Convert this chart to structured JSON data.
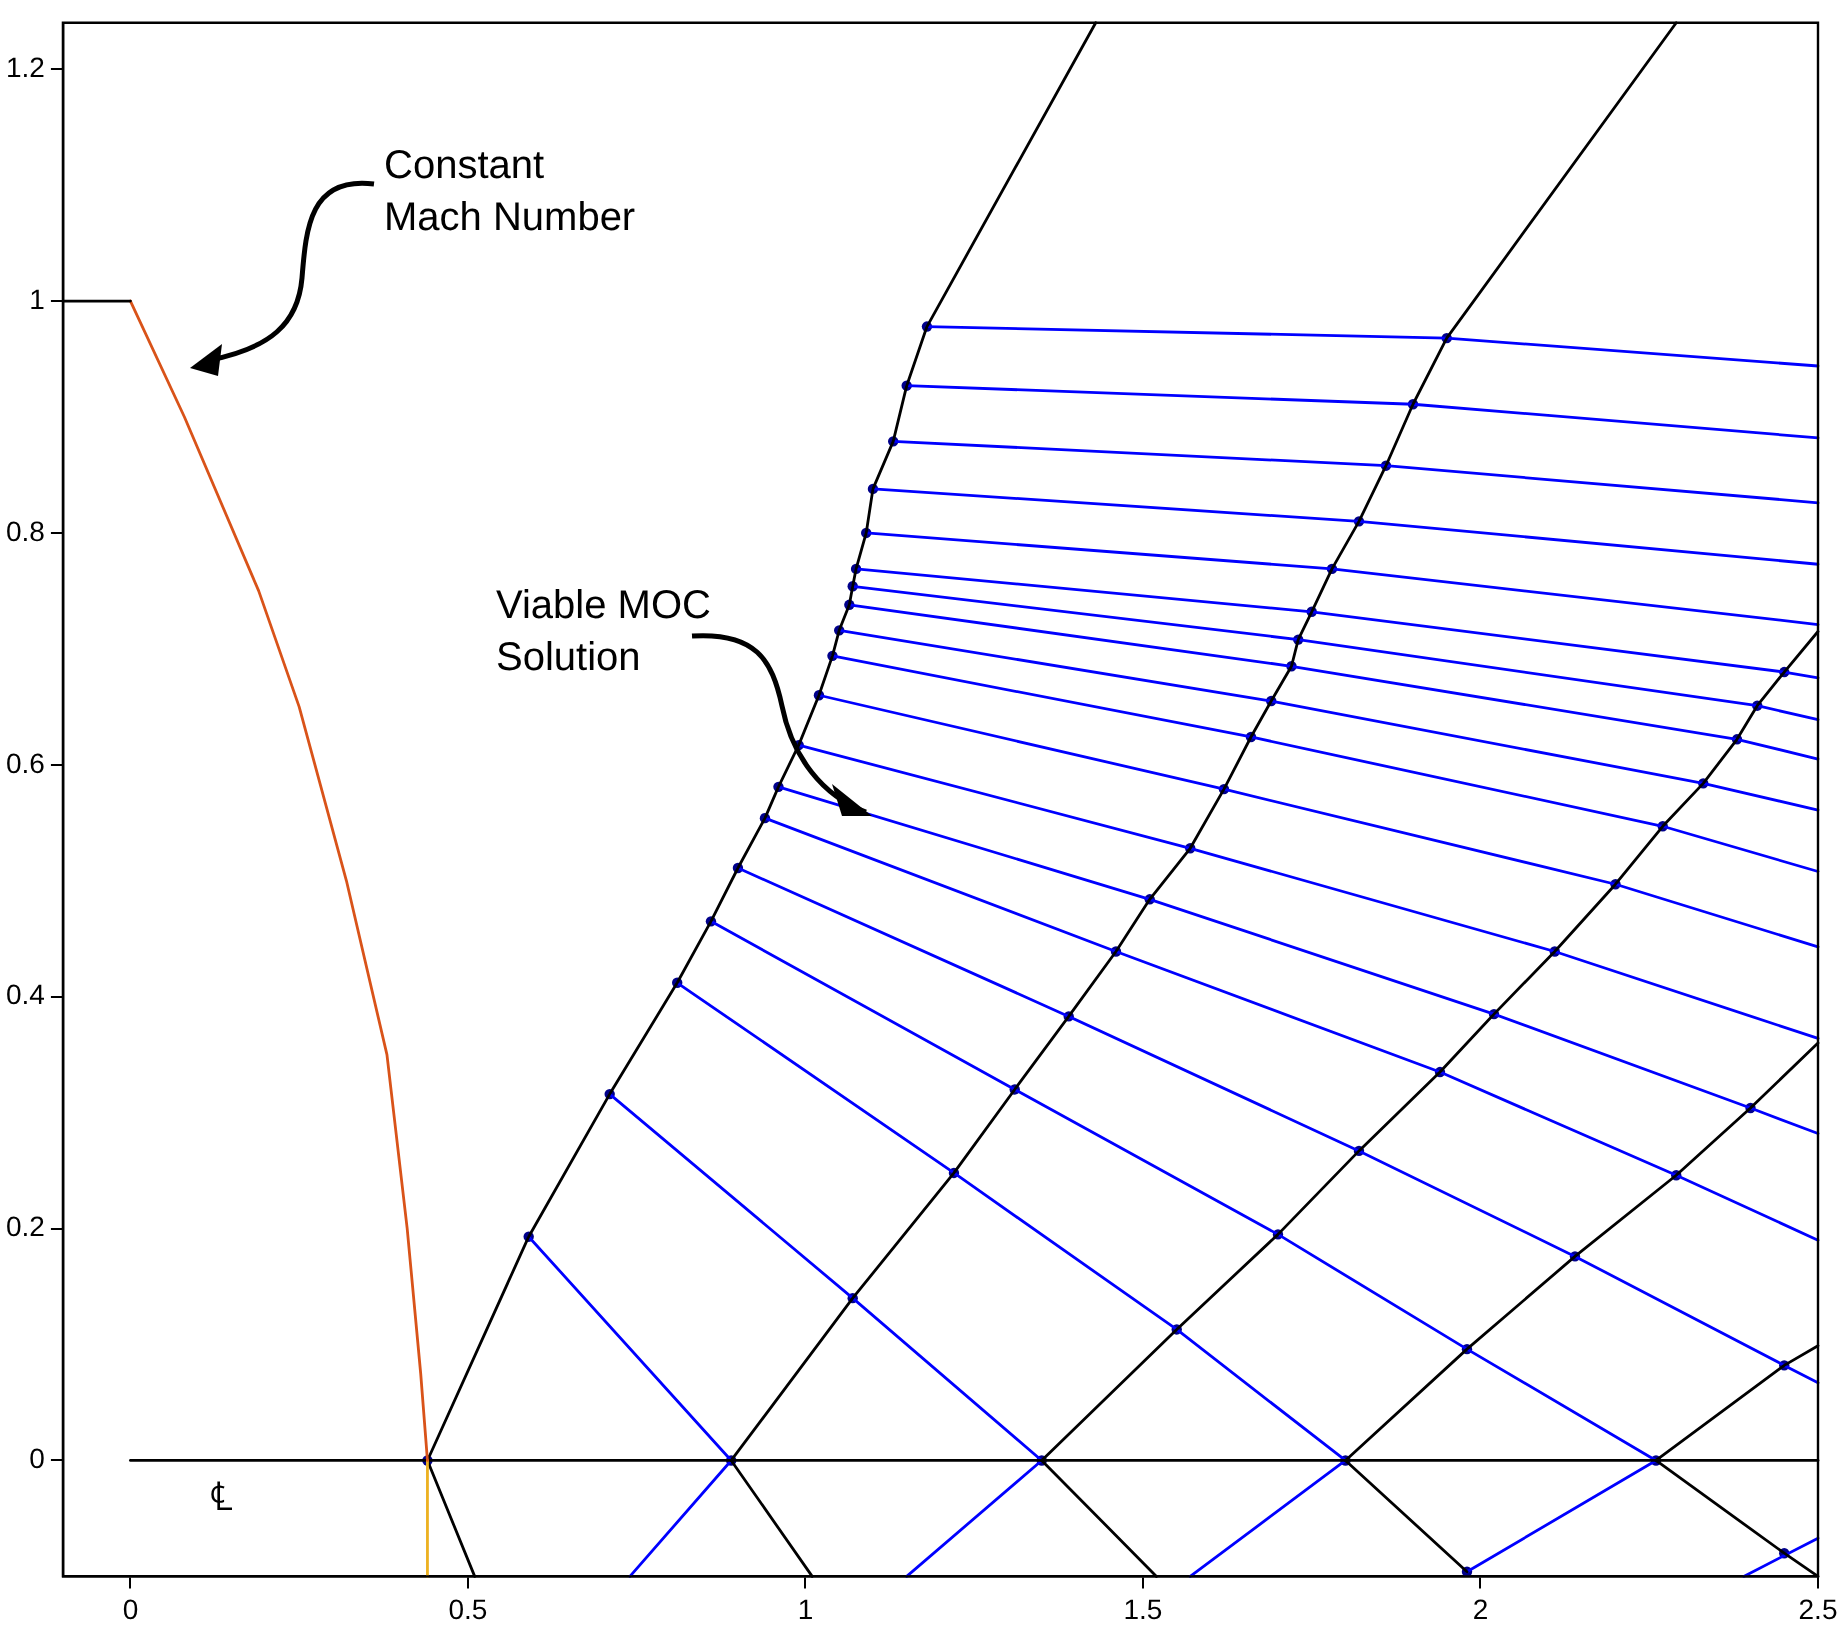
{
  "chart_data": {
    "type": "line",
    "xlim": [
      -0.1,
      2.5
    ],
    "ylim": [
      -0.1,
      1.24
    ],
    "xticks": [
      0,
      0.5,
      1,
      1.5,
      2,
      2.5
    ],
    "yticks": [
      0,
      0.2,
      0.4,
      0.6,
      0.8,
      1,
      1.2
    ],
    "grid": false,
    "legend": false,
    "marker": "none",
    "annotations": [
      "Constant Mach Number",
      {
        "text": "Viable MOC Solution",
        "x": 1.1,
        "y": 0.556
      },
      "℄"
    ],
    "series": [
      {
        "color": "#000000",
        "x": [
          -0.1,
          0
        ],
        "values": [
          1,
          1
        ]
      },
      {
        "color": "#d95319",
        "x": [
          0,
          0.08,
          0.19,
          0.25,
          0.32,
          0.38,
          0.41,
          0.43,
          0.44
        ],
        "values": [
          1,
          0.9,
          0.75,
          0.65,
          0.5,
          0.35,
          0.2,
          0.075,
          0
        ]
      },
      {
        "color": "#edb120",
        "x": [
          0.44,
          0.44
        ],
        "values": [
          0,
          -0.1
        ]
      },
      {
        "color": "#000000",
        "x": [
          0,
          2.5
        ],
        "values": [
          0,
          0
        ]
      },
      {
        "color": "#000000",
        "x": [
          0.44,
          0.59,
          0.71,
          0.81,
          0.86,
          0.9,
          0.94,
          0.96,
          0.99,
          1.02,
          1.04,
          1.05,
          1.065,
          1.07,
          1.075,
          1.09,
          1.1,
          1.13,
          1.15,
          1.18,
          1.43
        ],
        "values": [
          0,
          0.193,
          0.316,
          0.412,
          0.465,
          0.511,
          0.554,
          0.581,
          0.617,
          0.66,
          0.694,
          0.716,
          0.738,
          0.754,
          0.769,
          0.8,
          0.838,
          0.879,
          0.927,
          0.978,
          1.24
        ]
      },
      {
        "color": "#000000",
        "x": [
          0.89,
          1.07,
          1.22,
          1.31,
          1.39,
          1.46,
          1.51,
          1.57,
          1.62,
          1.66,
          1.69,
          1.72,
          1.73,
          1.75,
          1.78,
          1.82,
          1.86,
          1.9,
          1.95,
          2.29
        ],
        "values": [
          0,
          0.14,
          0.248,
          0.32,
          0.383,
          0.439,
          0.484,
          0.528,
          0.579,
          0.624,
          0.655,
          0.685,
          0.708,
          0.732,
          0.769,
          0.81,
          0.858,
          0.911,
          0.968,
          1.24
        ]
      },
      {
        "color": "#000000",
        "x": [
          1.35,
          1.55,
          1.7,
          1.82,
          1.94,
          2.02,
          2.11,
          2.2,
          2.27,
          2.33,
          2.38,
          2.41,
          2.45,
          2.5
        ],
        "values": [
          0,
          0.113,
          0.195,
          0.267,
          0.335,
          0.385,
          0.439,
          0.497,
          0.547,
          0.584,
          0.622,
          0.651,
          0.68,
          0.715
        ]
      },
      {
        "color": "#000000",
        "x": [
          1.8,
          1.98,
          2.14,
          2.29,
          2.4,
          2.5
        ],
        "values": [
          0,
          0.096,
          0.176,
          0.246,
          0.304,
          0.36
        ]
      },
      {
        "color": "#000000",
        "x": [
          2.26,
          2.45,
          2.5
        ],
        "values": [
          0,
          0.082,
          0.099
        ]
      },
      {
        "color": "#000000",
        "x": [
          0.44,
          0.51
        ],
        "values": [
          0,
          -0.1
        ]
      },
      {
        "color": "#000000",
        "x": [
          0.89,
          1.01
        ],
        "values": [
          0,
          -0.1
        ]
      },
      {
        "color": "#000000",
        "x": [
          1.35,
          1.52
        ],
        "values": [
          0,
          -0.1
        ]
      },
      {
        "color": "#000000",
        "x": [
          1.8,
          1.98
        ],
        "values": [
          0,
          -0.096
        ]
      },
      {
        "color": "#000000",
        "x": [
          2.26,
          2.45,
          2.5
        ],
        "values": [
          0,
          -0.08,
          -0.1
        ]
      },
      {
        "color": "#0000ff",
        "x": [
          0.74,
          0.89
        ],
        "values": [
          -0.1,
          0
        ]
      },
      {
        "color": "#0000ff",
        "x": [
          1.15,
          1.35
        ],
        "values": [
          -0.1,
          0
        ]
      },
      {
        "color": "#0000ff",
        "x": [
          1.57,
          1.8
        ],
        "values": [
          -0.1,
          0
        ]
      },
      {
        "color": "#0000ff",
        "x": [
          1.98,
          2.26
        ],
        "values": [
          -0.096,
          0
        ]
      },
      {
        "color": "#0000ff",
        "x": [
          2.39,
          2.5
        ],
        "values": [
          -0.1,
          -0.067
        ]
      },
      {
        "color": "#0000ff",
        "x": [
          0.59,
          0.89
        ],
        "values": [
          0.193,
          0
        ]
      },
      {
        "color": "#0000ff",
        "x": [
          0.71,
          1.07,
          1.35
        ],
        "values": [
          0.316,
          0.14,
          0
        ]
      },
      {
        "color": "#0000ff",
        "x": [
          0.81,
          1.22,
          1.55,
          1.8
        ],
        "values": [
          0.412,
          0.248,
          0.113,
          0
        ]
      },
      {
        "color": "#0000ff",
        "x": [
          0.86,
          1.31,
          1.7,
          1.98,
          2.26
        ],
        "values": [
          0.465,
          0.32,
          0.195,
          0.096,
          0
        ]
      },
      {
        "color": "#0000ff",
        "x": [
          0.9,
          1.39,
          1.82,
          2.14,
          2.45,
          2.5
        ],
        "values": [
          0.511,
          0.383,
          0.267,
          0.176,
          0.082,
          0.067
        ]
      },
      {
        "color": "#0000ff",
        "x": [
          0.94,
          1.46,
          1.94,
          2.29,
          2.5
        ],
        "values": [
          0.554,
          0.439,
          0.335,
          0.246,
          0.19
        ]
      },
      {
        "color": "#0000ff",
        "x": [
          0.96,
          1.51,
          2.02,
          2.4,
          2.5
        ],
        "values": [
          0.581,
          0.484,
          0.385,
          0.304,
          0.282
        ]
      },
      {
        "color": "#0000ff",
        "x": [
          0.99,
          1.57,
          2.11,
          2.5
        ],
        "values": [
          0.617,
          0.528,
          0.439,
          0.364
        ]
      },
      {
        "color": "#0000ff",
        "x": [
          1.02,
          1.62,
          2.2,
          2.5
        ],
        "values": [
          0.66,
          0.579,
          0.497,
          0.443
        ]
      },
      {
        "color": "#0000ff",
        "x": [
          1.04,
          1.66,
          2.27,
          2.5
        ],
        "values": [
          0.694,
          0.624,
          0.547,
          0.508
        ]
      },
      {
        "color": "#0000ff",
        "x": [
          1.05,
          1.69,
          2.33,
          2.5
        ],
        "values": [
          0.716,
          0.655,
          0.584,
          0.561
        ]
      },
      {
        "color": "#0000ff",
        "x": [
          1.065,
          1.72,
          2.38,
          2.5
        ],
        "values": [
          0.738,
          0.685,
          0.622,
          0.605
        ]
      },
      {
        "color": "#0000ff",
        "x": [
          1.07,
          1.73,
          2.41,
          2.5
        ],
        "values": [
          0.754,
          0.708,
          0.651,
          0.639
        ]
      },
      {
        "color": "#0000ff",
        "x": [
          1.075,
          1.75,
          2.45,
          2.5
        ],
        "values": [
          0.769,
          0.732,
          0.68,
          0.675
        ]
      },
      {
        "color": "#0000ff",
        "x": [
          1.09,
          1.78,
          2.5
        ],
        "values": [
          0.8,
          0.769,
          0.721
        ]
      },
      {
        "color": "#0000ff",
        "x": [
          1.1,
          1.82,
          2.5
        ],
        "values": [
          0.838,
          0.81,
          0.773
        ]
      },
      {
        "color": "#0000ff",
        "x": [
          1.13,
          1.86,
          2.5
        ],
        "values": [
          0.879,
          0.858,
          0.826
        ]
      },
      {
        "color": "#0000ff",
        "x": [
          1.15,
          1.9,
          2.5
        ],
        "values": [
          0.927,
          0.911,
          0.882
        ]
      },
      {
        "color": "#0000ff",
        "x": [
          1.18,
          1.95,
          2.5
        ],
        "values": [
          0.978,
          0.968,
          0.944
        ]
      },
      {
        "type": "scatter",
        "marker": "circle",
        "color": "#00008b",
        "x": [
          0.44,
          0.59,
          0.71,
          0.81,
          0.86,
          0.9,
          0.94,
          0.96,
          0.99,
          1.02,
          1.04,
          1.05,
          1.065,
          1.07,
          1.075,
          1.09,
          1.1,
          1.13,
          1.15,
          1.18,
          0.89,
          1.07,
          1.22,
          1.31,
          1.39,
          1.46,
          1.51,
          1.57,
          1.62,
          1.66,
          1.69,
          1.72,
          1.73,
          1.75,
          1.78,
          1.82,
          1.86,
          1.9,
          1.95,
          1.35,
          1.55,
          1.7,
          1.82,
          1.94,
          2.02,
          2.11,
          2.2,
          2.27,
          2.33,
          2.38,
          2.41,
          2.45,
          1.8,
          1.98,
          2.14,
          2.29,
          2.4,
          2.26,
          2.45,
          1.98,
          2.45
        ],
        "values": [
          0,
          0.193,
          0.316,
          0.412,
          0.465,
          0.511,
          0.554,
          0.581,
          0.617,
          0.66,
          0.694,
          0.716,
          0.738,
          0.754,
          0.769,
          0.8,
          0.838,
          0.879,
          0.927,
          0.978,
          0,
          0.14,
          0.248,
          0.32,
          0.383,
          0.439,
          0.484,
          0.528,
          0.579,
          0.624,
          0.655,
          0.685,
          0.708,
          0.732,
          0.769,
          0.81,
          0.858,
          0.911,
          0.968,
          0,
          0.113,
          0.195,
          0.267,
          0.335,
          0.385,
          0.439,
          0.497,
          0.547,
          0.584,
          0.622,
          0.651,
          0.68,
          0,
          0.096,
          0.176,
          0.246,
          0.304,
          0,
          0.082,
          -0.096,
          -0.08
        ]
      }
    ]
  }
}
